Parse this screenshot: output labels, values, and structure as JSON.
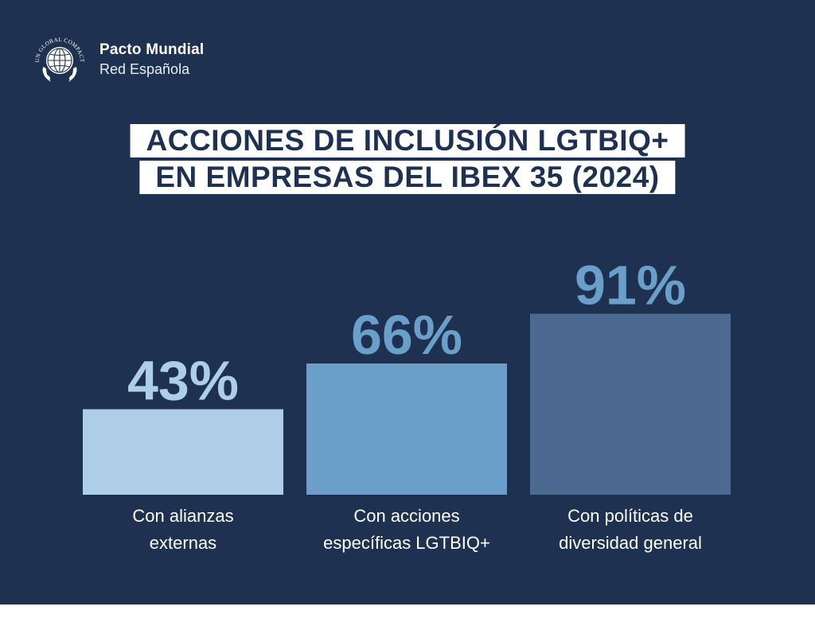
{
  "logo": {
    "arc_text": "UN GLOBAL COMPACT",
    "name": "Pacto Mundial",
    "subtitle": "Red Española"
  },
  "title": {
    "line1": "ACCIONES DE INCLUSIÓN LGTBIQ+",
    "line2": "EN EMPRESAS DEL IBEX 35 (2024)"
  },
  "colors": {
    "background": "#1f3150",
    "title_box": "#ffffff",
    "title_text": "#1f3150"
  },
  "chart_data": {
    "type": "bar",
    "title": "ACCIONES DE INCLUSIÓN LGTBIQ+ EN EMPRESAS DEL IBEX 35 (2024)",
    "categories": [
      [
        "Con alianzas",
        "externas"
      ],
      [
        "Con acciones",
        "específicas LGTBIQ+"
      ],
      [
        "Con políticas de",
        "diversidad general"
      ]
    ],
    "values": [
      43,
      66,
      91
    ],
    "value_labels": [
      "43%",
      "66%",
      "91%"
    ],
    "bar_colors": [
      "#aecde6",
      "#6a9fc9",
      "#4c6a91"
    ],
    "value_label_colors": [
      "#aecde6",
      "#6a9fc9",
      "#6a9fc9"
    ],
    "ylim": [
      0,
      100
    ],
    "xlabel": "",
    "ylabel": "",
    "grid": false,
    "legend": "none"
  }
}
